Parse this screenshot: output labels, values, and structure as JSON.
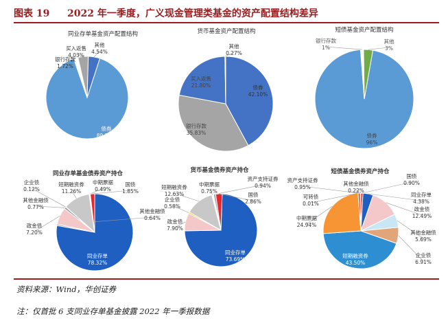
{
  "figure": {
    "label": "图表 19",
    "title": "2022 年一季度，广义现金管理类基金的资产配置结构差异"
  },
  "footer": {
    "source": "资料来源：Wind，华创证券",
    "note": "注：仅首批 6 支同业存单基金披露 2022 年一季报数据"
  },
  "colors": {
    "blue": "#5b9bd5",
    "orange": "#ed7d31",
    "gray": "#a5a5a5",
    "gold": "#ffc000",
    "royal": "#4472c4",
    "green": "#70ad47",
    "red": "#e8262d",
    "navy": "#1f5fc1",
    "light_pink": "#f4c7c8",
    "light_gray": "#c8c8c8",
    "pale_blue": "#c9e6f5",
    "tan": "#e2a579",
    "brick": "#d3583e",
    "sky": "#2d8fd1",
    "orange2": "#f79433",
    "dark_red": "#9b1c1f"
  },
  "chart_data": [
    {
      "id": "ncd-asset",
      "type": "pie",
      "title": "同业存单基金资产配置结构",
      "categories": [
        "债券",
        "银行存款",
        "买入返售",
        "其他"
      ],
      "values": [
        89.71,
        1.72,
        4.03,
        4.54
      ],
      "value_labels": [
        "89.71%",
        "1.72%",
        "4.03%",
        "4.54%"
      ],
      "colors": [
        "#5b9bd5",
        "#ffffff",
        "#a5a5a5",
        "#4472c4"
      ]
    },
    {
      "id": "mmf-asset",
      "type": "pie",
      "title": "货币基金资产配置结构",
      "categories": [
        "债券",
        "银行存款",
        "买入返售",
        "其他"
      ],
      "values": [
        42.1,
        35.83,
        21.8,
        0.27
      ],
      "value_labels": [
        "42.10%",
        "35.83%",
        "21.80%",
        "0.27%"
      ],
      "colors": [
        "#4472c4",
        "#a5a5a5",
        "#4472c4",
        "#ffc000"
      ]
    },
    {
      "id": "short-bond-asset",
      "type": "pie",
      "title": "短债基金资产配置结构",
      "categories": [
        "债券",
        "银行存款",
        "其他"
      ],
      "values": [
        96,
        1,
        3
      ],
      "value_labels": [
        "96%",
        "1%",
        "3%"
      ],
      "colors": [
        "#5b9bd5",
        "#ffffff",
        "#70ad47"
      ]
    },
    {
      "id": "ncd-bond-holdings",
      "type": "pie",
      "title": "同业存单基金债券资产持仓",
      "categories": [
        "同业存单",
        "其他金融债",
        "政金债",
        "其他金融债",
        "企业债",
        "短期融资券",
        "中期票据",
        "国债"
      ],
      "values": [
        78.32,
        0.64,
        7.2,
        0.77,
        0.12,
        11.26,
        0.49,
        1.85
      ],
      "value_labels": [
        "78.32%",
        "0.64%",
        "7.20%",
        "0.77%",
        "0.12%",
        "11.26%",
        "0.49%",
        "1.85%"
      ],
      "colors": [
        "#1f5fc1",
        "#a5a5a5",
        "#f4c7c8",
        "#8c8c8c",
        "#ffc000",
        "#c8c8c8",
        "#ffffff",
        "#e8262d"
      ]
    },
    {
      "id": "mmf-bond-holdings",
      "type": "pie",
      "title": "货币基金债券资产持仓",
      "categories": [
        "同业存单",
        "政金债",
        "企业债",
        "短期融资券",
        "中期票据",
        "资产支持证券",
        "国债"
      ],
      "values": [
        73.69,
        7.9,
        0.58,
        12.63,
        0.75,
        0.94,
        2.86
      ],
      "value_labels": [
        "73.69%",
        "7.90%",
        "0.58%",
        "12.63%",
        "0.75%",
        "0.94%",
        "2.86%"
      ],
      "colors": [
        "#1f5fc1",
        "#f4c7c8",
        "#ffc000",
        "#c8c8c8",
        "#ffffff",
        "#a5a5a5",
        "#e8262d"
      ]
    },
    {
      "id": "short-bond-holdings",
      "type": "pie",
      "title": "短债基金债券资产持仓",
      "categories": [
        "国债",
        "同业存单",
        "政金债",
        "其他金融债",
        "企业债",
        "短期融资券",
        "中期票据",
        "可转债",
        "资产支持证券",
        "其他金融债"
      ],
      "values": [
        0.9,
        4.38,
        12.49,
        5.69,
        6.91,
        43.5,
        24.94,
        0.01,
        0.95,
        0.22
      ],
      "value_labels": [
        "0.90%",
        "4.38%",
        "12.49%",
        "5.69%",
        "6.91%",
        "43.50%",
        "24.94%",
        "0.01%",
        "0.95%",
        "0.22%"
      ],
      "colors": [
        "#e8262d",
        "#1f5fc1",
        "#f4c7c8",
        "#c9e6f5",
        "#e2a579",
        "#2d8fd1",
        "#f79433",
        "#a5a5a5",
        "#d3583e",
        "#8c8c8c"
      ]
    }
  ]
}
